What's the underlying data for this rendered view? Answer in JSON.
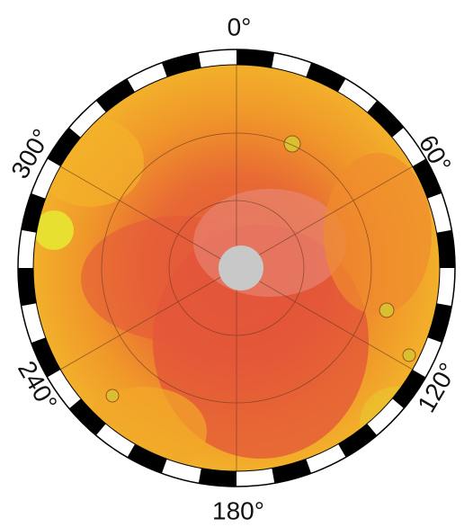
{
  "map": {
    "labels": [
      "0°",
      "60°",
      "120°",
      "180°",
      "240°",
      "300°"
    ]
  }
}
